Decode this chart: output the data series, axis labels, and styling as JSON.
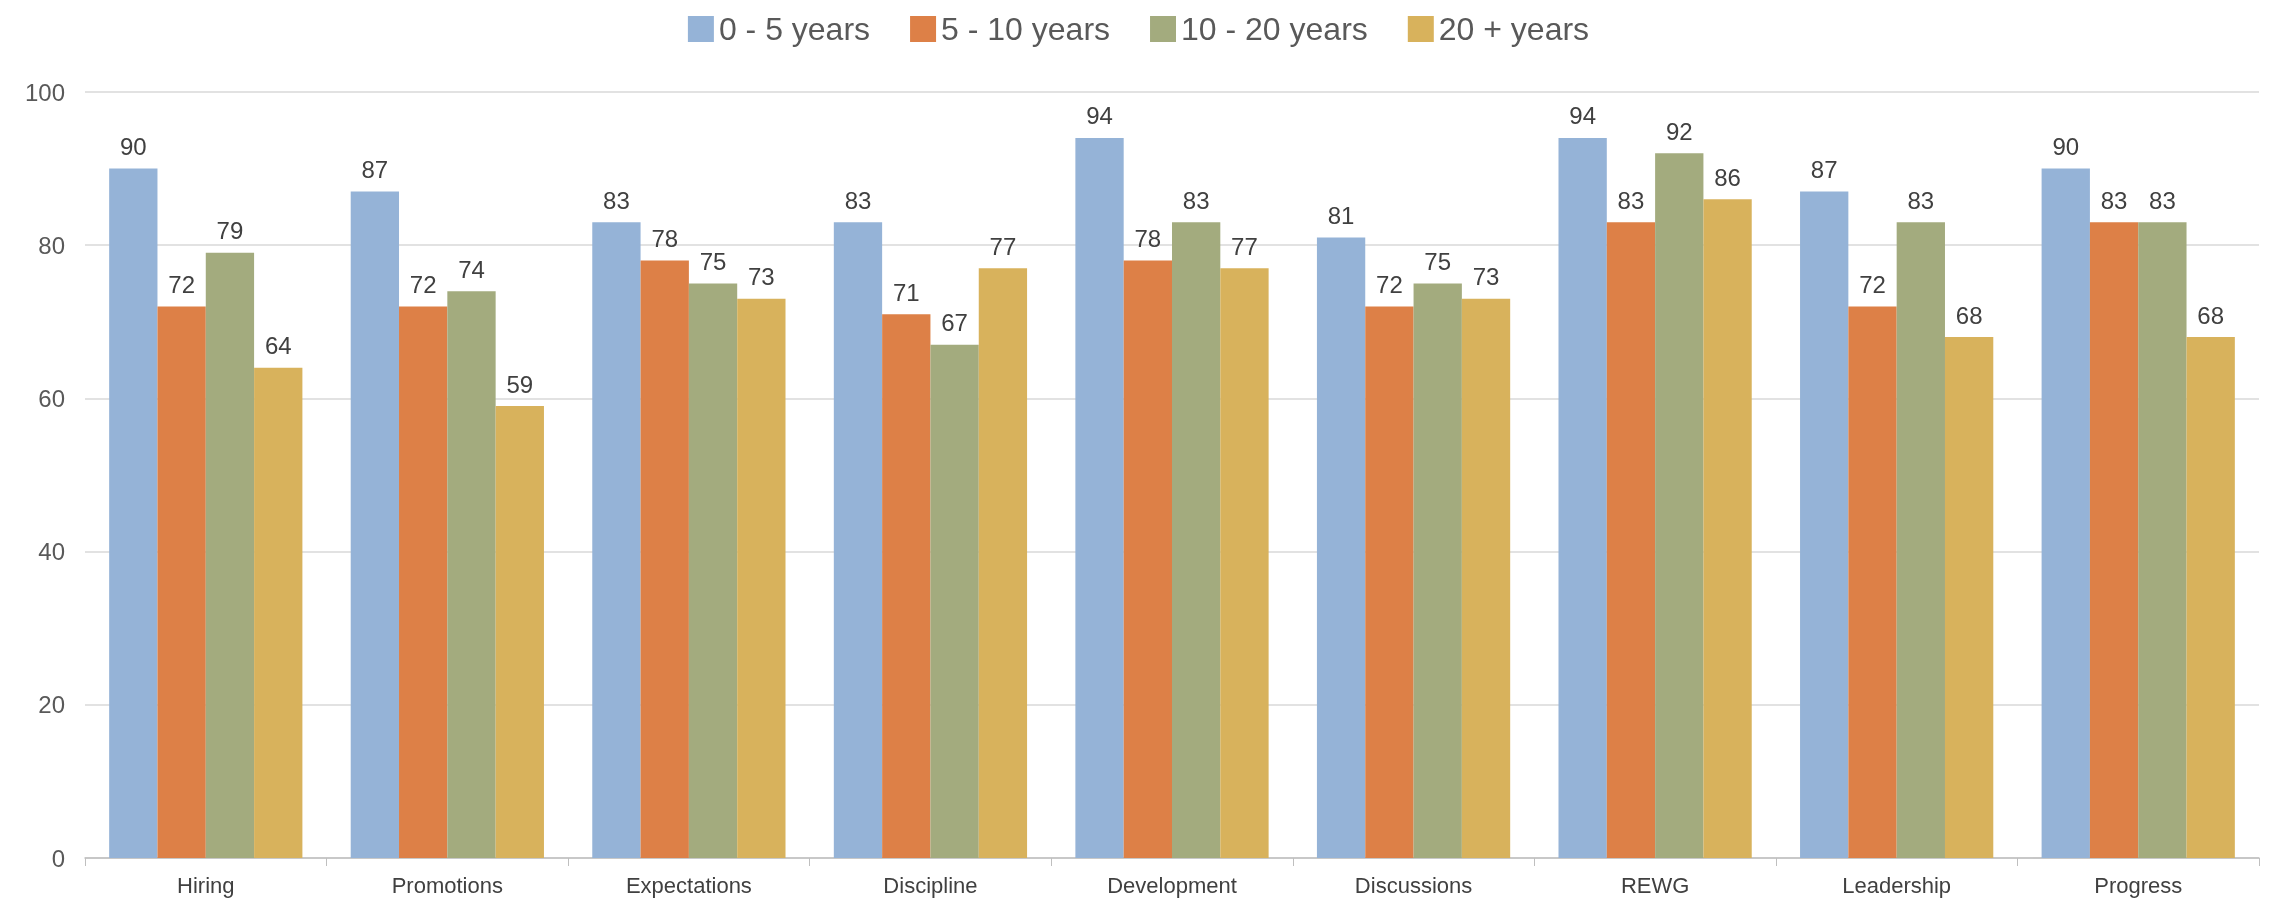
{
  "chart_data": {
    "type": "bar",
    "categories": [
      "Hiring",
      "Promotions",
      "Expectations",
      "Discipline",
      "Development",
      "Discussions",
      "REWG",
      "Leadership",
      "Progress"
    ],
    "series": [
      {
        "name": "0 - 5 years",
        "color": "#95b3d7",
        "values": [
          90,
          87,
          83,
          83,
          94,
          81,
          94,
          87,
          90
        ]
      },
      {
        "name": "5 - 10 years",
        "color": "#dd8047",
        "values": [
          72,
          72,
          78,
          71,
          78,
          72,
          83,
          72,
          83
        ]
      },
      {
        "name": "10 - 20 years",
        "color": "#a3ab7e",
        "values": [
          79,
          74,
          75,
          67,
          83,
          75,
          92,
          83,
          83
        ]
      },
      {
        "name": "20 + years",
        "color": "#d8b25c",
        "values": [
          64,
          59,
          73,
          77,
          77,
          73,
          86,
          68,
          68
        ]
      }
    ],
    "ylim": [
      0,
      100
    ],
    "yticks": [
      0,
      20,
      40,
      60,
      80,
      100
    ],
    "grid": "y",
    "legend": "top",
    "data_labels": true
  }
}
